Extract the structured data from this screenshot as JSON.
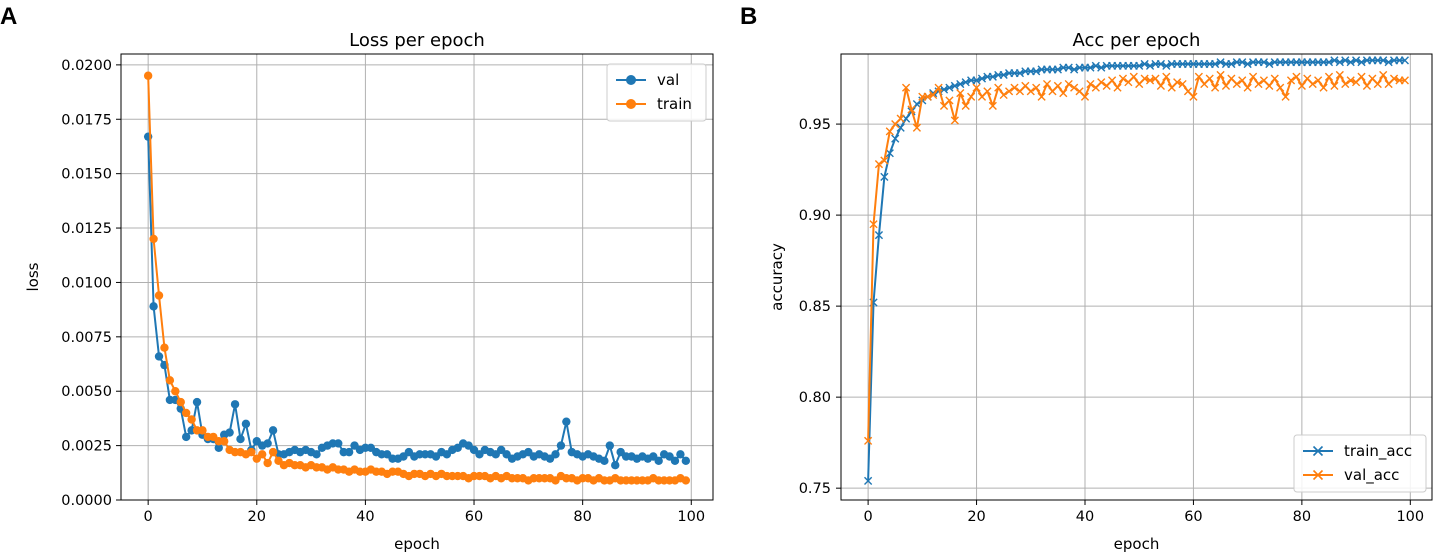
{
  "panels": {
    "a": "A",
    "b": "B"
  },
  "colors": {
    "blue": "#1f77b4",
    "orange": "#ff7f0e",
    "grid": "#b0b0b0"
  },
  "chart_data": [
    {
      "type": "line",
      "title": "Loss per epoch",
      "xlabel": "epoch",
      "ylabel": "loss",
      "xlim": [
        -5,
        104
      ],
      "ylim": [
        0,
        0.0205
      ],
      "xticks": [
        0,
        20,
        40,
        60,
        80,
        100
      ],
      "yticks": [
        0.0,
        0.0025,
        0.005,
        0.0075,
        0.01,
        0.0125,
        0.015,
        0.0175,
        0.02
      ],
      "ytick_labels": [
        "0.0000",
        "0.0025",
        "0.0050",
        "0.0075",
        "0.0100",
        "0.0125",
        "0.0150",
        "0.0175",
        "0.0200"
      ],
      "marker": "o",
      "legend": "top-right",
      "series": [
        {
          "name": "val",
          "color": "#1f77b4",
          "values": [
            0.0167,
            0.0089,
            0.0066,
            0.0062,
            0.0046,
            0.0046,
            0.0042,
            0.0029,
            0.0032,
            0.0045,
            0.003,
            0.0028,
            0.0028,
            0.0024,
            0.003,
            0.0031,
            0.0044,
            0.0028,
            0.0035,
            0.0023,
            0.0027,
            0.0025,
            0.0026,
            0.0032,
            0.0021,
            0.0021,
            0.0022,
            0.0023,
            0.0022,
            0.0023,
            0.0022,
            0.0021,
            0.0024,
            0.0025,
            0.0026,
            0.0026,
            0.0022,
            0.0022,
            0.0025,
            0.0023,
            0.0024,
            0.0024,
            0.0022,
            0.0021,
            0.0021,
            0.0019,
            0.0019,
            0.002,
            0.0022,
            0.002,
            0.0021,
            0.0021,
            0.0021,
            0.002,
            0.0022,
            0.0021,
            0.0023,
            0.0024,
            0.0026,
            0.0025,
            0.0023,
            0.0021,
            0.0023,
            0.0022,
            0.0021,
            0.0023,
            0.0021,
            0.0019,
            0.002,
            0.0021,
            0.0022,
            0.002,
            0.0021,
            0.002,
            0.0019,
            0.0021,
            0.0025,
            0.0036,
            0.0022,
            0.0021,
            0.002,
            0.0021,
            0.002,
            0.0019,
            0.0018,
            0.0025,
            0.0016,
            0.0022,
            0.002,
            0.002,
            0.0019,
            0.002,
            0.0019,
            0.002,
            0.0018,
            0.0021,
            0.002,
            0.0018,
            0.0021,
            0.0018
          ]
        },
        {
          "name": "train",
          "color": "#ff7f0e",
          "values": [
            0.0195,
            0.012,
            0.0094,
            0.007,
            0.0055,
            0.005,
            0.0045,
            0.004,
            0.0037,
            0.0032,
            0.0032,
            0.0029,
            0.0029,
            0.0027,
            0.0027,
            0.0023,
            0.0022,
            0.0022,
            0.0021,
            0.0022,
            0.0019,
            0.0021,
            0.0017,
            0.0022,
            0.0018,
            0.0016,
            0.0017,
            0.0016,
            0.0016,
            0.0015,
            0.0016,
            0.0015,
            0.0015,
            0.0014,
            0.0015,
            0.0014,
            0.0014,
            0.0013,
            0.0014,
            0.0013,
            0.0013,
            0.0014,
            0.0013,
            0.0013,
            0.0012,
            0.0013,
            0.0013,
            0.0012,
            0.0011,
            0.0012,
            0.0012,
            0.0011,
            0.0012,
            0.0011,
            0.0012,
            0.0011,
            0.0011,
            0.0011,
            0.0011,
            0.001,
            0.0011,
            0.0011,
            0.0011,
            0.001,
            0.0011,
            0.001,
            0.0011,
            0.001,
            0.001,
            0.001,
            0.0009,
            0.001,
            0.001,
            0.001,
            0.001,
            0.0009,
            0.0011,
            0.001,
            0.001,
            0.0009,
            0.001,
            0.001,
            0.0009,
            0.001,
            0.0009,
            0.0009,
            0.001,
            0.0009,
            0.0009,
            0.0009,
            0.0009,
            0.0009,
            0.0009,
            0.001,
            0.0009,
            0.0009,
            0.0009,
            0.0009,
            0.001,
            0.0009
          ]
        }
      ]
    },
    {
      "type": "line",
      "title": "Acc per epoch",
      "xlabel": "epoch",
      "ylabel": "accuracy",
      "xlim": [
        -5,
        104
      ],
      "ylim": [
        0.7435,
        0.9885
      ],
      "xticks": [
        0,
        20,
        40,
        60,
        80,
        100
      ],
      "yticks": [
        0.75,
        0.8,
        0.85,
        0.9,
        0.95
      ],
      "ytick_labels": [
        "0.75",
        "0.80",
        "0.85",
        "0.90",
        "0.95"
      ],
      "marker": "x",
      "legend": "bottom-right",
      "series": [
        {
          "name": "train_acc",
          "color": "#1f77b4",
          "values": [
            0.754,
            0.852,
            0.889,
            0.921,
            0.934,
            0.942,
            0.948,
            0.953,
            0.957,
            0.961,
            0.963,
            0.965,
            0.967,
            0.968,
            0.969,
            0.97,
            0.971,
            0.972,
            0.973,
            0.974,
            0.974,
            0.975,
            0.976,
            0.976,
            0.977,
            0.977,
            0.978,
            0.978,
            0.978,
            0.979,
            0.979,
            0.979,
            0.98,
            0.98,
            0.98,
            0.98,
            0.981,
            0.981,
            0.98,
            0.981,
            0.981,
            0.981,
            0.982,
            0.981,
            0.982,
            0.982,
            0.982,
            0.982,
            0.982,
            0.982,
            0.982,
            0.983,
            0.982,
            0.983,
            0.983,
            0.982,
            0.983,
            0.983,
            0.983,
            0.983,
            0.983,
            0.983,
            0.983,
            0.983,
            0.983,
            0.984,
            0.983,
            0.983,
            0.984,
            0.984,
            0.983,
            0.984,
            0.984,
            0.984,
            0.983,
            0.984,
            0.984,
            0.984,
            0.984,
            0.984,
            0.984,
            0.984,
            0.984,
            0.984,
            0.984,
            0.984,
            0.985,
            0.984,
            0.985,
            0.984,
            0.985,
            0.984,
            0.985,
            0.985,
            0.985,
            0.985,
            0.984,
            0.985,
            0.985,
            0.985
          ]
        },
        {
          "name": "val_acc",
          "color": "#ff7f0e",
          "values": [
            0.776,
            0.895,
            0.928,
            0.93,
            0.946,
            0.95,
            0.953,
            0.97,
            0.958,
            0.948,
            0.965,
            0.965,
            0.966,
            0.97,
            0.96,
            0.963,
            0.952,
            0.967,
            0.96,
            0.965,
            0.97,
            0.965,
            0.968,
            0.96,
            0.97,
            0.966,
            0.968,
            0.97,
            0.968,
            0.971,
            0.968,
            0.97,
            0.965,
            0.972,
            0.968,
            0.971,
            0.967,
            0.972,
            0.97,
            0.968,
            0.965,
            0.972,
            0.97,
            0.973,
            0.971,
            0.974,
            0.97,
            0.975,
            0.973,
            0.976,
            0.972,
            0.975,
            0.974,
            0.975,
            0.971,
            0.976,
            0.97,
            0.973,
            0.972,
            0.968,
            0.965,
            0.976,
            0.972,
            0.975,
            0.97,
            0.977,
            0.971,
            0.975,
            0.972,
            0.974,
            0.97,
            0.976,
            0.972,
            0.974,
            0.971,
            0.975,
            0.97,
            0.965,
            0.974,
            0.976,
            0.971,
            0.975,
            0.972,
            0.974,
            0.97,
            0.976,
            0.971,
            0.977,
            0.972,
            0.974,
            0.973,
            0.976,
            0.971,
            0.975,
            0.972,
            0.977,
            0.972,
            0.975,
            0.974,
            0.974
          ]
        }
      ]
    }
  ]
}
